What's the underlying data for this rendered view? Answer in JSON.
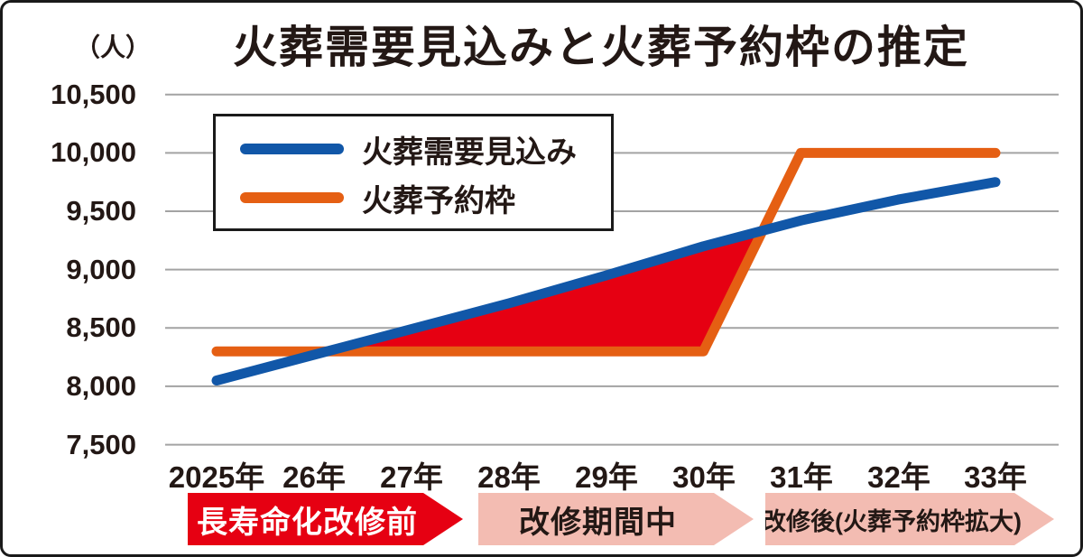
{
  "title": "火葬需要見込みと火葬予約枠の推定",
  "unit_label": "（人）",
  "legend": {
    "items": [
      {
        "label": "火葬需要見込み",
        "color": "#1157a8"
      },
      {
        "label": "火葬予約枠",
        "color": "#e55f13"
      }
    ]
  },
  "chart_data": {
    "type": "line",
    "title": "火葬需要見込みと火葬予約枠の推定",
    "ylabel": "（人）",
    "categories": [
      "2025年",
      "26年",
      "27年",
      "28年",
      "29年",
      "30年",
      "31年",
      "32年",
      "33年"
    ],
    "series": [
      {
        "name": "火葬需要見込み",
        "color": "#1157a8",
        "values": [
          8050,
          8270,
          8490,
          8710,
          8950,
          9200,
          9420,
          9600,
          9750
        ]
      },
      {
        "name": "火葬予約枠",
        "color": "#e55f13",
        "values": [
          8300,
          8300,
          8300,
          8300,
          8300,
          8300,
          10000,
          10000,
          10000
        ]
      }
    ],
    "deficit_fill_color": "#e60012",
    "yticks": [
      {
        "label": "10,500",
        "value": 10500
      },
      {
        "label": "10,000",
        "value": 10000
      },
      {
        "label": "9,500",
        "value": 9500
      },
      {
        "label": "9,000",
        "value": 9000
      },
      {
        "label": "8,500",
        "value": 8500
      },
      {
        "label": "8,000",
        "value": 8000
      },
      {
        "label": "7,500",
        "value": 7500
      }
    ],
    "ylim": [
      7500,
      10500
    ],
    "grid": true,
    "gridline_color": "#a3a3a3",
    "legend_position": "top-left"
  },
  "timeline": {
    "phases": [
      {
        "label": "長寿命化改修前",
        "bg": "#e60012",
        "text_color": "#ffffff"
      },
      {
        "label": "改修期間中",
        "bg": "#f3bcb2",
        "text_color": "#231815"
      },
      {
        "label": "改修後(火葬予約枠拡大)",
        "bg": "#f3bcb2",
        "text_color": "#231815"
      }
    ]
  }
}
